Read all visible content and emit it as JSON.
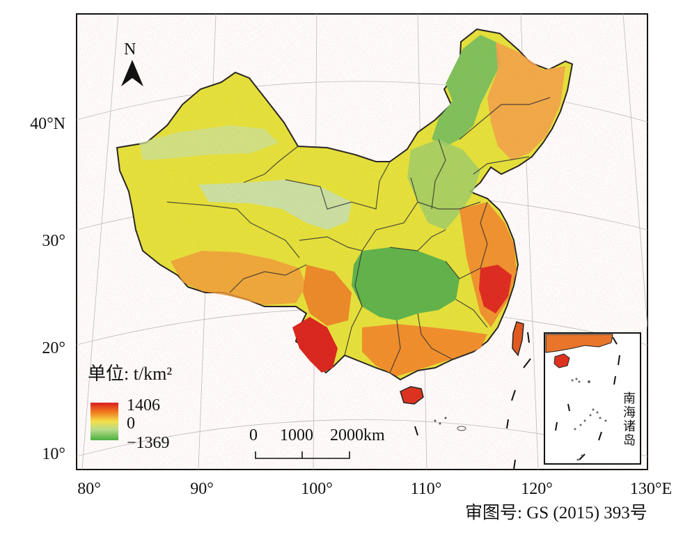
{
  "map": {
    "compass_letter": "N",
    "latitude_labels": [
      "40°N",
      "30°",
      "20°",
      "10°"
    ],
    "longitude_labels": [
      "80°",
      "90°",
      "100°",
      "110°",
      "120°",
      "130°E"
    ],
    "approval_number": "审图号: GS (2015) 393号",
    "inset_label": "南海诸岛"
  },
  "legend": {
    "title": "单位: t/km²",
    "max_label": "1406",
    "zero_label": "0",
    "min_label": "−1369",
    "colors": {
      "high": "#d81f1f",
      "mid_high": "#f07a1e",
      "zero": "#f4e04a",
      "mid_low": "#b5dc8a",
      "low": "#4caf3f"
    }
  },
  "scale_bar": {
    "labels": [
      "0",
      "1000",
      "2000km"
    ]
  }
}
